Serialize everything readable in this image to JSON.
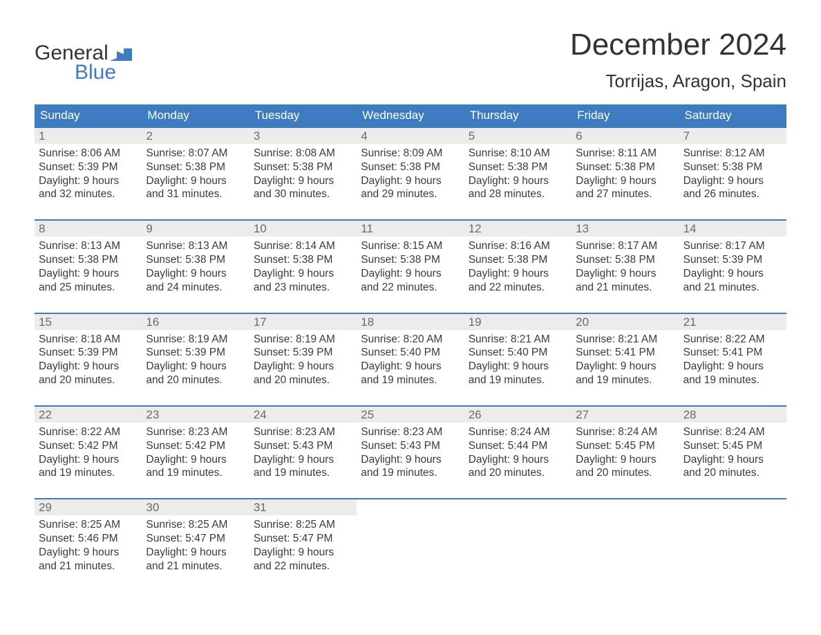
{
  "logo": {
    "word_top": "General",
    "word_bottom": "Blue",
    "flag_color": "#3d7cc0"
  },
  "title": "December 2024",
  "location": "Torrijas, Aragon, Spain",
  "colors": {
    "header_bg": "#3d7cc0",
    "header_text": "#ffffff",
    "daynum_bg": "#ececec",
    "daynum_text": "#6a6a6a",
    "body_text": "#3a3a3a",
    "page_bg": "#ffffff",
    "week_border": "#3d7cc0"
  },
  "fonts": {
    "title_size_pt": 33,
    "location_size_pt": 20,
    "dow_size_pt": 13,
    "daynum_size_pt": 13,
    "body_size_pt": 11.5
  },
  "days_of_week": [
    "Sunday",
    "Monday",
    "Tuesday",
    "Wednesday",
    "Thursday",
    "Friday",
    "Saturday"
  ],
  "weeks": [
    [
      {
        "n": "1",
        "sunrise": "Sunrise: 8:06 AM",
        "sunset": "Sunset: 5:39 PM",
        "dl1": "Daylight: 9 hours",
        "dl2": "and 32 minutes."
      },
      {
        "n": "2",
        "sunrise": "Sunrise: 8:07 AM",
        "sunset": "Sunset: 5:38 PM",
        "dl1": "Daylight: 9 hours",
        "dl2": "and 31 minutes."
      },
      {
        "n": "3",
        "sunrise": "Sunrise: 8:08 AM",
        "sunset": "Sunset: 5:38 PM",
        "dl1": "Daylight: 9 hours",
        "dl2": "and 30 minutes."
      },
      {
        "n": "4",
        "sunrise": "Sunrise: 8:09 AM",
        "sunset": "Sunset: 5:38 PM",
        "dl1": "Daylight: 9 hours",
        "dl2": "and 29 minutes."
      },
      {
        "n": "5",
        "sunrise": "Sunrise: 8:10 AM",
        "sunset": "Sunset: 5:38 PM",
        "dl1": "Daylight: 9 hours",
        "dl2": "and 28 minutes."
      },
      {
        "n": "6",
        "sunrise": "Sunrise: 8:11 AM",
        "sunset": "Sunset: 5:38 PM",
        "dl1": "Daylight: 9 hours",
        "dl2": "and 27 minutes."
      },
      {
        "n": "7",
        "sunrise": "Sunrise: 8:12 AM",
        "sunset": "Sunset: 5:38 PM",
        "dl1": "Daylight: 9 hours",
        "dl2": "and 26 minutes."
      }
    ],
    [
      {
        "n": "8",
        "sunrise": "Sunrise: 8:13 AM",
        "sunset": "Sunset: 5:38 PM",
        "dl1": "Daylight: 9 hours",
        "dl2": "and 25 minutes."
      },
      {
        "n": "9",
        "sunrise": "Sunrise: 8:13 AM",
        "sunset": "Sunset: 5:38 PM",
        "dl1": "Daylight: 9 hours",
        "dl2": "and 24 minutes."
      },
      {
        "n": "10",
        "sunrise": "Sunrise: 8:14 AM",
        "sunset": "Sunset: 5:38 PM",
        "dl1": "Daylight: 9 hours",
        "dl2": "and 23 minutes."
      },
      {
        "n": "11",
        "sunrise": "Sunrise: 8:15 AM",
        "sunset": "Sunset: 5:38 PM",
        "dl1": "Daylight: 9 hours",
        "dl2": "and 22 minutes."
      },
      {
        "n": "12",
        "sunrise": "Sunrise: 8:16 AM",
        "sunset": "Sunset: 5:38 PM",
        "dl1": "Daylight: 9 hours",
        "dl2": "and 22 minutes."
      },
      {
        "n": "13",
        "sunrise": "Sunrise: 8:17 AM",
        "sunset": "Sunset: 5:38 PM",
        "dl1": "Daylight: 9 hours",
        "dl2": "and 21 minutes."
      },
      {
        "n": "14",
        "sunrise": "Sunrise: 8:17 AM",
        "sunset": "Sunset: 5:39 PM",
        "dl1": "Daylight: 9 hours",
        "dl2": "and 21 minutes."
      }
    ],
    [
      {
        "n": "15",
        "sunrise": "Sunrise: 8:18 AM",
        "sunset": "Sunset: 5:39 PM",
        "dl1": "Daylight: 9 hours",
        "dl2": "and 20 minutes."
      },
      {
        "n": "16",
        "sunrise": "Sunrise: 8:19 AM",
        "sunset": "Sunset: 5:39 PM",
        "dl1": "Daylight: 9 hours",
        "dl2": "and 20 minutes."
      },
      {
        "n": "17",
        "sunrise": "Sunrise: 8:19 AM",
        "sunset": "Sunset: 5:39 PM",
        "dl1": "Daylight: 9 hours",
        "dl2": "and 20 minutes."
      },
      {
        "n": "18",
        "sunrise": "Sunrise: 8:20 AM",
        "sunset": "Sunset: 5:40 PM",
        "dl1": "Daylight: 9 hours",
        "dl2": "and 19 minutes."
      },
      {
        "n": "19",
        "sunrise": "Sunrise: 8:21 AM",
        "sunset": "Sunset: 5:40 PM",
        "dl1": "Daylight: 9 hours",
        "dl2": "and 19 minutes."
      },
      {
        "n": "20",
        "sunrise": "Sunrise: 8:21 AM",
        "sunset": "Sunset: 5:41 PM",
        "dl1": "Daylight: 9 hours",
        "dl2": "and 19 minutes."
      },
      {
        "n": "21",
        "sunrise": "Sunrise: 8:22 AM",
        "sunset": "Sunset: 5:41 PM",
        "dl1": "Daylight: 9 hours",
        "dl2": "and 19 minutes."
      }
    ],
    [
      {
        "n": "22",
        "sunrise": "Sunrise: 8:22 AM",
        "sunset": "Sunset: 5:42 PM",
        "dl1": "Daylight: 9 hours",
        "dl2": "and 19 minutes."
      },
      {
        "n": "23",
        "sunrise": "Sunrise: 8:23 AM",
        "sunset": "Sunset: 5:42 PM",
        "dl1": "Daylight: 9 hours",
        "dl2": "and 19 minutes."
      },
      {
        "n": "24",
        "sunrise": "Sunrise: 8:23 AM",
        "sunset": "Sunset: 5:43 PM",
        "dl1": "Daylight: 9 hours",
        "dl2": "and 19 minutes."
      },
      {
        "n": "25",
        "sunrise": "Sunrise: 8:23 AM",
        "sunset": "Sunset: 5:43 PM",
        "dl1": "Daylight: 9 hours",
        "dl2": "and 19 minutes."
      },
      {
        "n": "26",
        "sunrise": "Sunrise: 8:24 AM",
        "sunset": "Sunset: 5:44 PM",
        "dl1": "Daylight: 9 hours",
        "dl2": "and 20 minutes."
      },
      {
        "n": "27",
        "sunrise": "Sunrise: 8:24 AM",
        "sunset": "Sunset: 5:45 PM",
        "dl1": "Daylight: 9 hours",
        "dl2": "and 20 minutes."
      },
      {
        "n": "28",
        "sunrise": "Sunrise: 8:24 AM",
        "sunset": "Sunset: 5:45 PM",
        "dl1": "Daylight: 9 hours",
        "dl2": "and 20 minutes."
      }
    ],
    [
      {
        "n": "29",
        "sunrise": "Sunrise: 8:25 AM",
        "sunset": "Sunset: 5:46 PM",
        "dl1": "Daylight: 9 hours",
        "dl2": "and 21 minutes."
      },
      {
        "n": "30",
        "sunrise": "Sunrise: 8:25 AM",
        "sunset": "Sunset: 5:47 PM",
        "dl1": "Daylight: 9 hours",
        "dl2": "and 21 minutes."
      },
      {
        "n": "31",
        "sunrise": "Sunrise: 8:25 AM",
        "sunset": "Sunset: 5:47 PM",
        "dl1": "Daylight: 9 hours",
        "dl2": "and 22 minutes."
      },
      null,
      null,
      null,
      null
    ]
  ]
}
